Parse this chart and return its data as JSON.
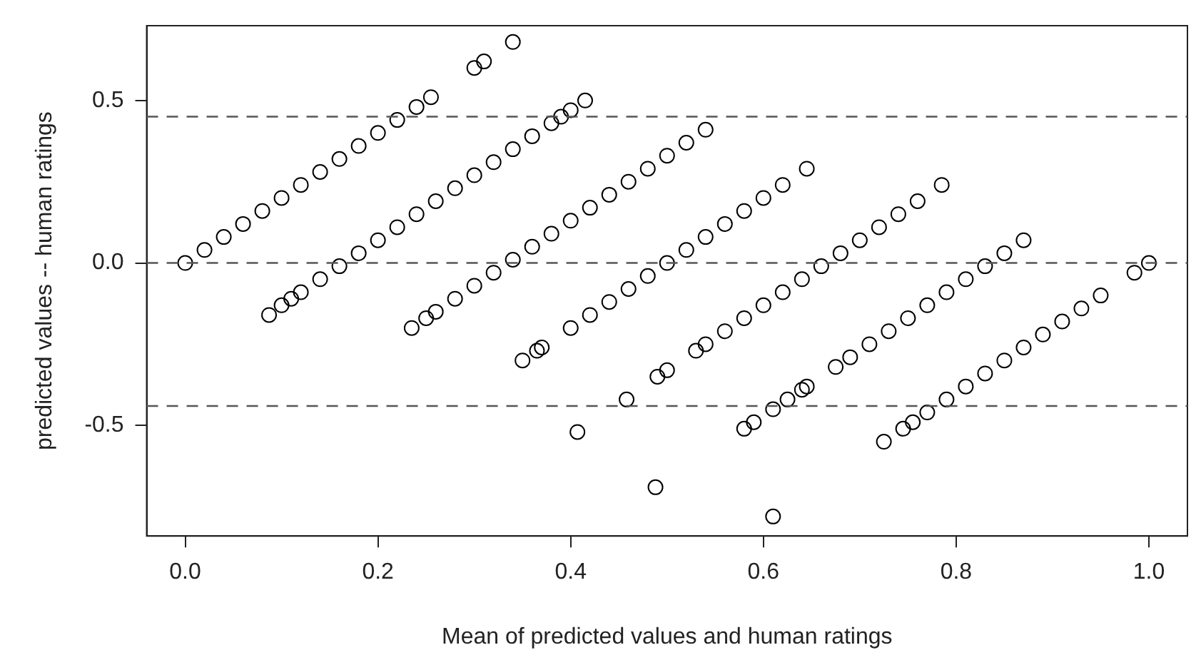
{
  "chart_data": {
    "type": "scatter",
    "xlabel": "Mean of predicted values and human ratings",
    "ylabel": "predicted values -- human ratings",
    "marker": "circle",
    "grid": false,
    "xlim": [
      -0.04,
      1.04
    ],
    "ylim": [
      -0.84,
      0.73
    ],
    "xticks": [
      {
        "value": 0,
        "label": "0.0"
      },
      {
        "value": 0.2,
        "label": "0.2"
      },
      {
        "value": 0.4,
        "label": "0.4"
      },
      {
        "value": 0.6,
        "label": "0.6"
      },
      {
        "value": 0.8,
        "label": "0.8"
      },
      {
        "value": 1,
        "label": "1.0"
      }
    ],
    "yticks": [
      {
        "value": -0.5,
        "label": "-0.5"
      },
      {
        "value": 0,
        "label": "0.0"
      },
      {
        "value": 0.5,
        "label": "0.5"
      }
    ],
    "ref_lines": [
      {
        "axis": "y",
        "value": 0.45,
        "color": "#555555",
        "line_style": "dashed"
      },
      {
        "axis": "y",
        "value": 0,
        "color": "#555555",
        "line_style": "dashed"
      },
      {
        "axis": "y",
        "value": -0.44,
        "color": "#555555",
        "line_style": "dashed"
      }
    ],
    "series": [
      {
        "color": "#000000",
        "x": [
          0,
          0.02,
          0.04,
          0.06,
          0.08,
          0.1,
          0.12,
          0.14,
          0.16,
          0.18,
          0.2,
          0.22,
          0.24,
          0.255,
          0.3,
          0.31,
          0.34,
          0.087,
          0.1,
          0.11,
          0.12,
          0.14,
          0.16,
          0.18,
          0.2,
          0.22,
          0.24,
          0.26,
          0.28,
          0.3,
          0.32,
          0.34,
          0.36,
          0.38,
          0.39,
          0.4,
          0.415,
          0.235,
          0.25,
          0.26,
          0.28,
          0.3,
          0.32,
          0.34,
          0.36,
          0.38,
          0.4,
          0.42,
          0.44,
          0.46,
          0.48,
          0.5,
          0.52,
          0.54,
          0.35,
          0.365,
          0.37,
          0.4,
          0.42,
          0.44,
          0.46,
          0.48,
          0.5,
          0.52,
          0.54,
          0.56,
          0.58,
          0.6,
          0.62,
          0.645,
          0.407,
          0.458,
          0.49,
          0.5,
          0.53,
          0.54,
          0.56,
          0.58,
          0.6,
          0.62,
          0.64,
          0.66,
          0.68,
          0.7,
          0.72,
          0.74,
          0.76,
          0.785,
          0.488,
          0.58,
          0.59,
          0.61,
          0.625,
          0.64,
          0.645,
          0.675,
          0.69,
          0.71,
          0.73,
          0.75,
          0.77,
          0.79,
          0.81,
          0.83,
          0.85,
          0.87,
          0.61,
          0.725,
          0.745,
          0.755,
          0.77,
          0.79,
          0.81,
          0.83,
          0.85,
          0.87,
          0.89,
          0.91,
          0.93,
          0.95,
          0.985,
          1.0
        ],
        "values": [
          0,
          0.04,
          0.08,
          0.12,
          0.16,
          0.2,
          0.24,
          0.28,
          0.32,
          0.36,
          0.4,
          0.44,
          0.48,
          0.51,
          0.6,
          0.62,
          0.68,
          -0.16,
          -0.13,
          -0.11,
          -0.09,
          -0.05,
          -0.01,
          0.03,
          0.07,
          0.11,
          0.15,
          0.19,
          0.23,
          0.27,
          0.31,
          0.35,
          0.39,
          0.43,
          0.45,
          0.47,
          0.5,
          -0.2,
          -0.17,
          -0.15,
          -0.11,
          -0.07,
          -0.03,
          0.01,
          0.05,
          0.09,
          0.13,
          0.17,
          0.21,
          0.25,
          0.29,
          0.33,
          0.37,
          0.41,
          -0.3,
          -0.27,
          -0.26,
          -0.2,
          -0.16,
          -0.12,
          -0.08,
          -0.04,
          0,
          0.04,
          0.08,
          0.12,
          0.16,
          0.2,
          0.24,
          0.29,
          -0.52,
          -0.42,
          -0.35,
          -0.33,
          -0.27,
          -0.25,
          -0.21,
          -0.17,
          -0.13,
          -0.09,
          -0.05,
          -0.01,
          0.03,
          0.07,
          0.11,
          0.15,
          0.19,
          0.24,
          -0.69,
          -0.51,
          -0.49,
          -0.45,
          -0.42,
          -0.39,
          -0.38,
          -0.32,
          -0.29,
          -0.25,
          -0.21,
          -0.17,
          -0.13,
          -0.09,
          -0.05,
          -0.01,
          0.03,
          0.07,
          -0.78,
          -0.55,
          -0.51,
          -0.49,
          -0.46,
          -0.42,
          -0.38,
          -0.34,
          -0.3,
          -0.26,
          -0.22,
          -0.18,
          -0.14,
          -0.1,
          -0.03,
          0
        ]
      }
    ]
  }
}
